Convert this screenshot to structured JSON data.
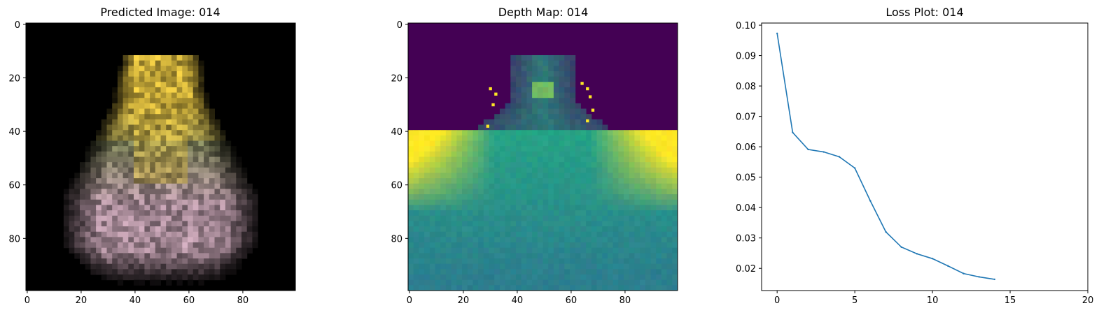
{
  "chart_data": [
    {
      "type": "heatmap",
      "title": "Predicted Image: 014",
      "xlabel": "",
      "ylabel": "",
      "xlim": [
        -0.5,
        99.5
      ],
      "ylim": [
        99.5,
        -0.5
      ],
      "x_ticks": [
        "0",
        "20",
        "40",
        "60",
        "80"
      ],
      "y_ticks": [
        "0",
        "20",
        "40",
        "60",
        "80"
      ],
      "colors": {
        "background": "#000000",
        "top_yellow": "#e8c642",
        "bottom_pink": "#c4a2b2",
        "mid_green": "#8a8f63"
      }
    },
    {
      "type": "heatmap",
      "title": "Depth Map: 014",
      "xlabel": "",
      "ylabel": "",
      "xlim": [
        -0.5,
        99.5
      ],
      "ylim": [
        99.5,
        -0.5
      ],
      "x_ticks": [
        "0",
        "20",
        "40",
        "60",
        "80"
      ],
      "y_ticks": [
        "0",
        "20",
        "40",
        "60",
        "80"
      ],
      "colormap": "viridis",
      "colors": {
        "background": "#440154",
        "far": "#fde725",
        "mid": "#26a385",
        "near": "#2c7e8e"
      }
    },
    {
      "type": "line",
      "title": "Loss Plot: 014",
      "xlabel": "",
      "ylabel": "",
      "xlim": [
        -1,
        20
      ],
      "ylim": [
        0.0127,
        0.1007
      ],
      "x_ticks": [
        "0",
        "5",
        "10",
        "15",
        "20"
      ],
      "y_ticks": [
        "0.02",
        "0.03",
        "0.04",
        "0.05",
        "0.06",
        "0.07",
        "0.08",
        "0.09",
        "0.10"
      ],
      "series": [
        {
          "color": "#1f77b4",
          "x": [
            0,
            1,
            2,
            3,
            4,
            5,
            6,
            7,
            8,
            9,
            10,
            11,
            12,
            13,
            14
          ],
          "values": [
            0.0973,
            0.0647,
            0.0591,
            0.0583,
            0.0567,
            0.053,
            0.0422,
            0.032,
            0.027,
            0.0248,
            0.0232,
            0.0208,
            0.0183,
            0.0172,
            0.0164
          ]
        }
      ]
    }
  ]
}
